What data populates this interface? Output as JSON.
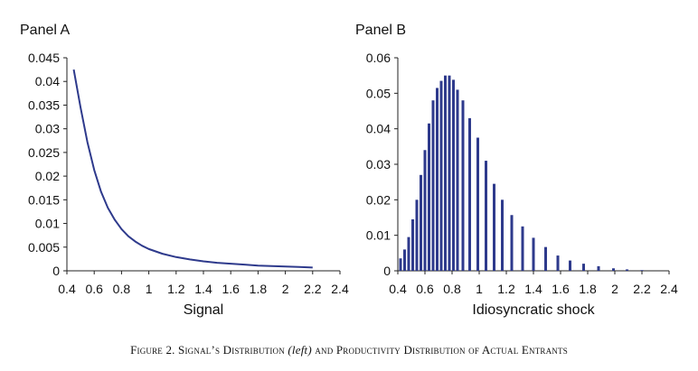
{
  "figure": {
    "caption_parts": [
      {
        "text": "Figure 2. Signal’s Distribution ",
        "style": "sc"
      },
      {
        "text": "(left)",
        "style": "it"
      },
      {
        "text": " and Productivity Distribution of Actual Entrants",
        "style": "sc"
      }
    ]
  },
  "colors": {
    "series": "#2e3a8c",
    "axis": "#222222",
    "text": "#111111"
  },
  "chart_data": [
    {
      "type": "line",
      "panel_title": "Panel A",
      "xlabel": "Signal",
      "ylabel": "",
      "xlim": [
        0.4,
        2.4
      ],
      "ylim": [
        0,
        0.045
      ],
      "x_ticks": [
        "0.4",
        "0.6",
        "0.8",
        "1",
        "1.2",
        "1.4",
        "1.6",
        "1.8",
        "2",
        "2.2",
        "2.4"
      ],
      "y_ticks": [
        "0",
        "0.005",
        "0.01",
        "0.015",
        "0.02",
        "0.025",
        "0.03",
        "0.035",
        "0.04",
        "0.045"
      ],
      "grid": false,
      "series": [
        {
          "x": [
            0.45,
            0.5,
            0.55,
            0.6,
            0.65,
            0.7,
            0.75,
            0.8,
            0.85,
            0.9,
            0.95,
            1.0,
            1.1,
            1.2,
            1.3,
            1.4,
            1.5,
            1.6,
            1.7,
            1.8,
            1.9,
            2.0,
            2.1,
            2.2
          ],
          "y": [
            0.0425,
            0.0345,
            0.0272,
            0.0213,
            0.0167,
            0.0133,
            0.0108,
            0.0088,
            0.0073,
            0.0062,
            0.0053,
            0.0046,
            0.0036,
            0.0029,
            0.0024,
            0.002,
            0.0017,
            0.0015,
            0.0013,
            0.0011,
            0.001,
            0.0009,
            0.0008,
            0.0007
          ]
        }
      ]
    },
    {
      "type": "bar",
      "panel_title": "Panel B",
      "xlabel": "Idiosyncratic shock",
      "ylabel": "",
      "xlim": [
        0.4,
        2.4
      ],
      "ylim": [
        0,
        0.06
      ],
      "x_ticks": [
        "0.4",
        "0.6",
        "0.8",
        "1",
        "1.2",
        "1.4",
        "1.6",
        "1.8",
        "2",
        "2.2",
        "2.4"
      ],
      "y_ticks": [
        "0",
        "0.01",
        "0.02",
        "0.03",
        "0.04",
        "0.05",
        "0.06"
      ],
      "grid": false,
      "series": [
        {
          "x": [
            0.42,
            0.45,
            0.48,
            0.51,
            0.54,
            0.57,
            0.6,
            0.63,
            0.66,
            0.69,
            0.72,
            0.75,
            0.78,
            0.81,
            0.84,
            0.88,
            0.93,
            0.99,
            1.05,
            1.11,
            1.17,
            1.24,
            1.32,
            1.4,
            1.49,
            1.58,
            1.67,
            1.77,
            1.88,
            1.99,
            2.09,
            2.2
          ],
          "y": [
            0.0035,
            0.006,
            0.0095,
            0.0145,
            0.02,
            0.027,
            0.034,
            0.0415,
            0.048,
            0.0515,
            0.0535,
            0.055,
            0.055,
            0.0538,
            0.051,
            0.048,
            0.043,
            0.0375,
            0.031,
            0.0245,
            0.02,
            0.0157,
            0.0125,
            0.0093,
            0.0067,
            0.0043,
            0.0029,
            0.002,
            0.0013,
            0.0007,
            0.0004,
            0.0002
          ]
        }
      ]
    }
  ]
}
